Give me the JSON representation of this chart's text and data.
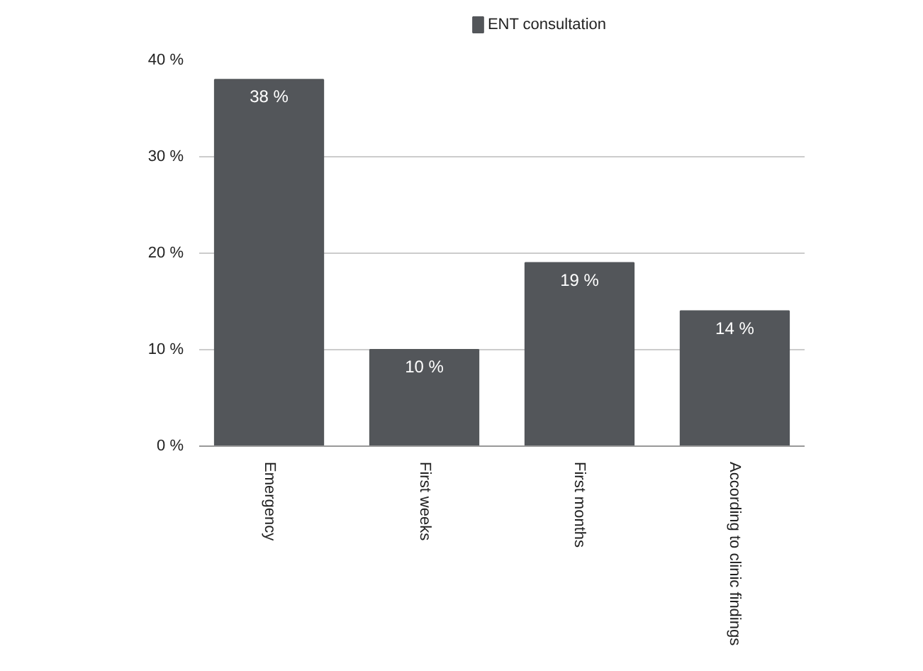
{
  "chart_data": {
    "type": "bar",
    "categories": [
      "Emergency",
      "First weeks",
      "First months",
      "According to clinic findings"
    ],
    "series": [
      {
        "name": "ENT consultation",
        "color": "#53565a",
        "values": [
          38,
          10,
          19,
          14
        ],
        "value_labels": [
          "38 %",
          "10 %",
          "19 %",
          "14 %"
        ]
      }
    ],
    "ylim": [
      0,
      40
    ],
    "yticks": [
      {
        "value": 0,
        "label": "0 %"
      },
      {
        "value": 10,
        "label": "10 %"
      },
      {
        "value": 20,
        "label": "20 %"
      },
      {
        "value": 30,
        "label": "30 %"
      },
      {
        "value": 40,
        "label": "40 %"
      }
    ],
    "grid": "y",
    "legend": "top"
  }
}
